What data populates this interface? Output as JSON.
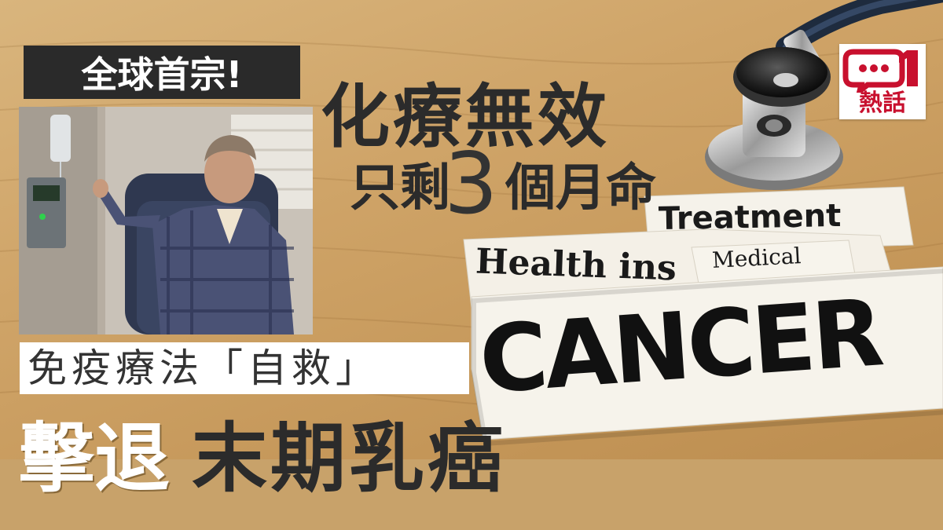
{
  "badge": {
    "text": "全球首宗!"
  },
  "headline": {
    "line1": "化療無效",
    "line2_prefix": "只剩",
    "line2_number": "3",
    "line2_suffix": "個月命"
  },
  "subheadline": "免疫療法「自救」",
  "main_title": {
    "part1": "擊退",
    "part2": "末期乳癌"
  },
  "logo": {
    "mark": "01",
    "label": "熱話",
    "accent": "#c8102e"
  },
  "paper_clippings": {
    "treatment": "Treatment",
    "health": "Health ins",
    "medical": "Medical",
    "cancer": "CANCER"
  },
  "colors": {
    "background": "#c9a062",
    "bottom_band": "#c8a26a",
    "dark_text": "#2b2b2b",
    "badge": "#2a2a2a"
  }
}
